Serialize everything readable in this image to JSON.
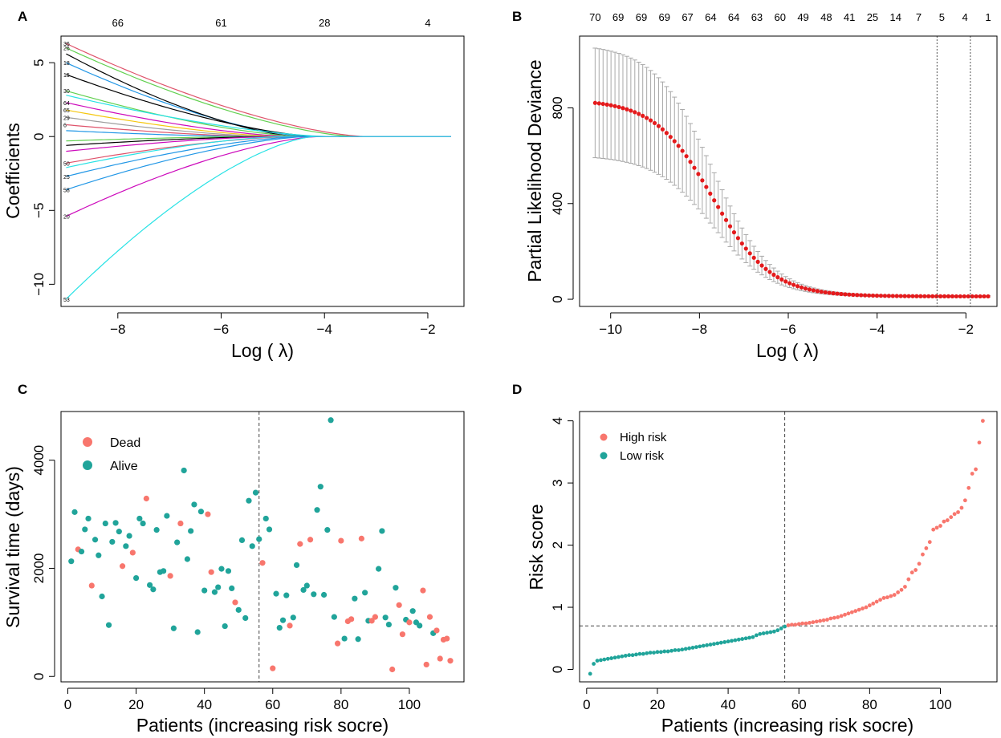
{
  "colors": {
    "dead_high": "#F8766D",
    "alive_low": "#20A49A",
    "deviance_point": "#E41A1C",
    "errorbar": "#A8A8A8",
    "axis": "#000000"
  },
  "chart_data": [
    {
      "panel": "A",
      "type": "line",
      "xlabel": "Log ( λ)",
      "ylabel": "Coefficients",
      "xlim": [
        -9.1,
        -1.3
      ],
      "ylim": [
        -11.5,
        6.8
      ],
      "xticks": [
        "−8",
        "−6",
        "−4",
        "−2"
      ],
      "yticks": [
        "−10",
        "−5",
        "0",
        "5"
      ],
      "top_axis_ticks": [
        {
          "at": -8,
          "label": "66"
        },
        {
          "at": -6,
          "label": "61"
        },
        {
          "at": -4,
          "label": "28"
        },
        {
          "at": -2,
          "label": "4"
        }
      ],
      "path_labels": [
        "36",
        "26",
        "18",
        "15",
        "30",
        "64",
        "65",
        "29",
        "6",
        "50",
        "25",
        "58",
        "20",
        "53"
      ],
      "series": [
        {
          "label": "36",
          "color": "#DF536B",
          "start": 6.3,
          "zero_at": -3.2
        },
        {
          "label": "26",
          "color": "#61D04F",
          "start": 6.0,
          "zero_at": -3.4
        },
        {
          "label": "18",
          "color": "#2297E6",
          "start": 5.0,
          "zero_at": -4.3
        },
        {
          "label": "",
          "color": "#000000",
          "start": 5.6,
          "zero_at": -4.5
        },
        {
          "label": "15",
          "color": "#000000",
          "start": 4.2,
          "zero_at": -4.1
        },
        {
          "label": "30",
          "color": "#61D04F",
          "start": 3.1,
          "zero_at": -4.4
        },
        {
          "label": "",
          "color": "#28E2E5",
          "start": 2.8,
          "zero_at": -3.9
        },
        {
          "label": "64",
          "color": "#CD0BBC",
          "start": 2.3,
          "zero_at": -4.6
        },
        {
          "label": "65",
          "color": "#F5C710",
          "start": 1.8,
          "zero_at": -4.8
        },
        {
          "label": "29",
          "color": "#9E9E9E",
          "start": 1.3,
          "zero_at": -5.0
        },
        {
          "label": "6",
          "color": "#DF536B",
          "start": 0.8,
          "zero_at": -5.2
        },
        {
          "label": "",
          "color": "#2297E6",
          "start": 0.4,
          "zero_at": -5.4
        },
        {
          "label": "",
          "color": "#61D04F",
          "start": -0.3,
          "zero_at": -5.3
        },
        {
          "label": "",
          "color": "#000000",
          "start": -0.6,
          "zero_at": -5.0
        },
        {
          "label": "",
          "color": "#CD0BBC",
          "start": -1.0,
          "zero_at": -4.9
        },
        {
          "label": "50",
          "color": "#DF536B",
          "start": -1.8,
          "zero_at": -4.6
        },
        {
          "label": "",
          "color": "#28E2E5",
          "start": -2.1,
          "zero_at": -4.8
        },
        {
          "label": "25",
          "color": "#2297E6",
          "start": -2.7,
          "zero_at": -4.4
        },
        {
          "label": "58",
          "color": "#2297E6",
          "start": -3.6,
          "zero_at": -4.3
        },
        {
          "label": "20",
          "color": "#CD0BBC",
          "start": -5.4,
          "zero_at": -4.1
        },
        {
          "label": "53",
          "color": "#28E2E5",
          "start": -11.0,
          "zero_at": -4.2
        }
      ]
    },
    {
      "panel": "B",
      "type": "scatter",
      "xlabel": "Log ( λ)",
      "ylabel": "Partial Likelihood Deviance",
      "xlim": [
        -10.7,
        -1.3
      ],
      "ylim": [
        -30,
        1100
      ],
      "xticks": [
        "−10",
        "−8",
        "−6",
        "−4",
        "−2"
      ],
      "yticks": [
        "0",
        "400",
        "800"
      ],
      "top_axis_labels": [
        "70",
        "69",
        "69",
        "69",
        "67",
        "64",
        "64",
        "63",
        "60",
        "49",
        "48",
        "41",
        "25",
        "14",
        "7",
        "5",
        "4",
        "1"
      ],
      "plateau_deviance": 835,
      "plateau_error_upper": 1065,
      "plateau_error_lower": 605,
      "min_deviance": 12,
      "lambda_min": -2.65,
      "lambda_1se": -1.9,
      "vertical_lines_at": [
        -2.65,
        -1.9
      ]
    },
    {
      "panel": "C",
      "type": "scatter",
      "xlabel": "Patients (increasing risk socre)",
      "ylabel": "Survival time (days)",
      "xlim": [
        -2,
        116
      ],
      "ylim": [
        -100,
        4900
      ],
      "xticks": [
        "0",
        "20",
        "40",
        "60",
        "80",
        "100"
      ],
      "yticks": [
        "0",
        "2000",
        "4000"
      ],
      "legend": [
        {
          "label": "Dead",
          "key": "dead"
        },
        {
          "label": "Alive",
          "key": "alive"
        }
      ],
      "cutoff_patient": 56,
      "points": [
        [
          1,
          2130,
          "a"
        ],
        [
          2,
          3040,
          "a"
        ],
        [
          3,
          2350,
          "d"
        ],
        [
          4,
          2310,
          "a"
        ],
        [
          5,
          2720,
          "a"
        ],
        [
          6,
          2920,
          "a"
        ],
        [
          7,
          1680,
          "d"
        ],
        [
          8,
          2530,
          "a"
        ],
        [
          9,
          2240,
          "a"
        ],
        [
          10,
          1480,
          "a"
        ],
        [
          11,
          2830,
          "a"
        ],
        [
          12,
          950,
          "a"
        ],
        [
          13,
          2490,
          "a"
        ],
        [
          14,
          2840,
          "a"
        ],
        [
          15,
          2680,
          "a"
        ],
        [
          16,
          2040,
          "d"
        ],
        [
          17,
          2410,
          "a"
        ],
        [
          18,
          2600,
          "a"
        ],
        [
          19,
          2290,
          "d"
        ],
        [
          20,
          1820,
          "a"
        ],
        [
          21,
          2920,
          "a"
        ],
        [
          22,
          2830,
          "a"
        ],
        [
          23,
          3290,
          "d"
        ],
        [
          24,
          1690,
          "a"
        ],
        [
          25,
          1610,
          "a"
        ],
        [
          26,
          2710,
          "a"
        ],
        [
          27,
          1930,
          "a"
        ],
        [
          28,
          1950,
          "a"
        ],
        [
          29,
          2970,
          "a"
        ],
        [
          30,
          1860,
          "d"
        ],
        [
          31,
          890,
          "a"
        ],
        [
          32,
          2480,
          "a"
        ],
        [
          33,
          2830,
          "d"
        ],
        [
          34,
          3810,
          "a"
        ],
        [
          35,
          2170,
          "a"
        ],
        [
          36,
          2690,
          "a"
        ],
        [
          37,
          3180,
          "a"
        ],
        [
          38,
          820,
          "a"
        ],
        [
          39,
          3050,
          "a"
        ],
        [
          40,
          1590,
          "a"
        ],
        [
          41,
          3000,
          "d"
        ],
        [
          42,
          1930,
          "d"
        ],
        [
          43,
          1560,
          "a"
        ],
        [
          44,
          1650,
          "a"
        ],
        [
          45,
          1990,
          "a"
        ],
        [
          46,
          930,
          "a"
        ],
        [
          47,
          1950,
          "a"
        ],
        [
          48,
          1630,
          "a"
        ],
        [
          49,
          1370,
          "d"
        ],
        [
          50,
          1230,
          "a"
        ],
        [
          51,
          2520,
          "a"
        ],
        [
          52,
          1080,
          "a"
        ],
        [
          53,
          3250,
          "a"
        ],
        [
          54,
          2410,
          "a"
        ],
        [
          55,
          3400,
          "a"
        ],
        [
          56,
          2540,
          "a"
        ],
        [
          57,
          2100,
          "d"
        ],
        [
          58,
          2920,
          "a"
        ],
        [
          59,
          2720,
          "a"
        ],
        [
          60,
          150,
          "d"
        ],
        [
          61,
          1530,
          "a"
        ],
        [
          62,
          900,
          "a"
        ],
        [
          63,
          1040,
          "a"
        ],
        [
          64,
          1500,
          "a"
        ],
        [
          65,
          940,
          "d"
        ],
        [
          66,
          1090,
          "a"
        ],
        [
          67,
          2060,
          "a"
        ],
        [
          68,
          2450,
          "d"
        ],
        [
          69,
          1600,
          "a"
        ],
        [
          70,
          1680,
          "a"
        ],
        [
          71,
          2530,
          "d"
        ],
        [
          72,
          1520,
          "a"
        ],
        [
          73,
          3080,
          "a"
        ],
        [
          74,
          3510,
          "a"
        ],
        [
          75,
          1510,
          "a"
        ],
        [
          76,
          2710,
          "a"
        ],
        [
          77,
          4740,
          "a"
        ],
        [
          78,
          1100,
          "a"
        ],
        [
          79,
          610,
          "d"
        ],
        [
          80,
          2510,
          "d"
        ],
        [
          81,
          700,
          "a"
        ],
        [
          82,
          1020,
          "d"
        ],
        [
          83,
          1060,
          "d"
        ],
        [
          84,
          1440,
          "a"
        ],
        [
          85,
          690,
          "a"
        ],
        [
          86,
          2550,
          "d"
        ],
        [
          87,
          1550,
          "a"
        ],
        [
          88,
          1030,
          "a"
        ],
        [
          89,
          1030,
          "d"
        ],
        [
          90,
          1100,
          "d"
        ],
        [
          91,
          1990,
          "a"
        ],
        [
          92,
          2690,
          "a"
        ],
        [
          93,
          1090,
          "a"
        ],
        [
          94,
          960,
          "a"
        ],
        [
          95,
          130,
          "d"
        ],
        [
          96,
          1640,
          "a"
        ],
        [
          97,
          1320,
          "d"
        ],
        [
          98,
          780,
          "d"
        ],
        [
          99,
          1050,
          "a"
        ],
        [
          100,
          1000,
          "d"
        ],
        [
          101,
          1210,
          "a"
        ],
        [
          102,
          1000,
          "a"
        ],
        [
          103,
          940,
          "a"
        ],
        [
          104,
          1590,
          "d"
        ],
        [
          105,
          220,
          "d"
        ],
        [
          106,
          1100,
          "d"
        ],
        [
          107,
          800,
          "a"
        ],
        [
          108,
          850,
          "d"
        ],
        [
          109,
          330,
          "d"
        ],
        [
          110,
          680,
          "d"
        ],
        [
          111,
          700,
          "d"
        ],
        [
          112,
          290,
          "d"
        ]
      ]
    },
    {
      "panel": "D",
      "type": "scatter",
      "xlabel": "Patients (increasing risk socre)",
      "ylabel": "Risk score",
      "xlim": [
        -2,
        116
      ],
      "ylim": [
        -0.2,
        4.15
      ],
      "xticks": [
        "0",
        "20",
        "40",
        "60",
        "80",
        "100"
      ],
      "yticks": [
        "0",
        "1",
        "2",
        "3",
        "4"
      ],
      "legend": [
        {
          "label": "High risk",
          "key": "high"
        },
        {
          "label": "Low risk",
          "key": "low"
        }
      ],
      "cutoff_patient": 56,
      "cutoff_score": 0.7,
      "risk_scores": [
        -0.07,
        0.09,
        0.14,
        0.15,
        0.16,
        0.17,
        0.18,
        0.19,
        0.2,
        0.21,
        0.22,
        0.23,
        0.23,
        0.24,
        0.25,
        0.25,
        0.26,
        0.27,
        0.27,
        0.28,
        0.28,
        0.29,
        0.29,
        0.3,
        0.31,
        0.31,
        0.32,
        0.33,
        0.34,
        0.35,
        0.36,
        0.37,
        0.38,
        0.39,
        0.4,
        0.41,
        0.42,
        0.43,
        0.44,
        0.45,
        0.46,
        0.47,
        0.48,
        0.49,
        0.5,
        0.51,
        0.52,
        0.55,
        0.57,
        0.58,
        0.59,
        0.6,
        0.61,
        0.63,
        0.66,
        0.69,
        0.71,
        0.72,
        0.72,
        0.73,
        0.74,
        0.74,
        0.75,
        0.76,
        0.77,
        0.78,
        0.79,
        0.8,
        0.82,
        0.83,
        0.84,
        0.86,
        0.88,
        0.9,
        0.92,
        0.94,
        0.96,
        0.98,
        1.0,
        1.03,
        1.06,
        1.09,
        1.12,
        1.15,
        1.16,
        1.18,
        1.2,
        1.24,
        1.28,
        1.33,
        1.45,
        1.56,
        1.6,
        1.7,
        1.85,
        1.95,
        2.05,
        2.25,
        2.28,
        2.31,
        2.38,
        2.4,
        2.45,
        2.5,
        2.53,
        2.6,
        2.72,
        2.92,
        3.15,
        3.22,
        3.65,
        4.0
      ]
    }
  ]
}
